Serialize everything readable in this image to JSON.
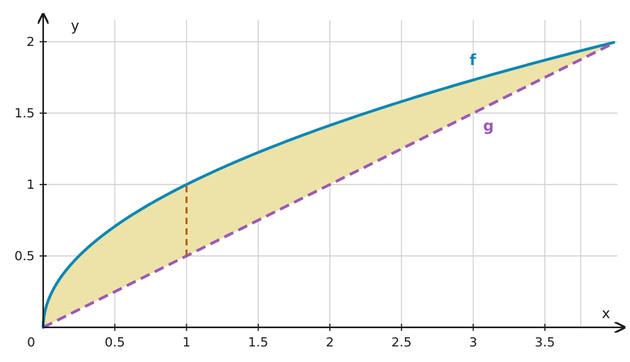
{
  "chart_data": {
    "type": "area",
    "title": "",
    "xlabel": "x",
    "ylabel": "y",
    "xlim": [
      0,
      3.98
    ],
    "ylim": [
      0,
      2.0
    ],
    "grid": true,
    "origin_label": "0",
    "x_ticks": [
      0.5,
      1,
      1.5,
      2,
      2.5,
      3,
      3.5
    ],
    "x_tick_labels": [
      "0.5",
      "1",
      "1.5",
      "2",
      "2.5",
      "3",
      "3.5"
    ],
    "y_ticks": [
      0.5,
      1,
      1.5,
      2
    ],
    "y_tick_labels": [
      "0.5",
      "1",
      "1.5",
      "2"
    ],
    "series": [
      {
        "name": "f",
        "style": "solid",
        "color": "#0a86b4",
        "x": [
          0,
          0.01,
          0.05,
          0.1,
          0.25,
          0.5,
          1,
          1.5,
          2,
          2.5,
          3,
          3.5,
          4
        ],
        "values": [
          0,
          0.1,
          0.224,
          0.316,
          0.5,
          0.707,
          1,
          1.225,
          1.414,
          1.581,
          1.732,
          1.871,
          2
        ]
      },
      {
        "name": "g",
        "style": "dashed",
        "color": "#9b59b6",
        "x": [
          0,
          4
        ],
        "values": [
          0,
          2
        ]
      }
    ],
    "shaded_region": {
      "between": [
        "f",
        "g"
      ],
      "x_from": 0,
      "x_to": 4,
      "color": "#ede3a8"
    },
    "vertical_segment": {
      "x": 1,
      "y_from": 0.5,
      "y_to": 1,
      "style": "dashed",
      "color": "#b8651b"
    }
  }
}
